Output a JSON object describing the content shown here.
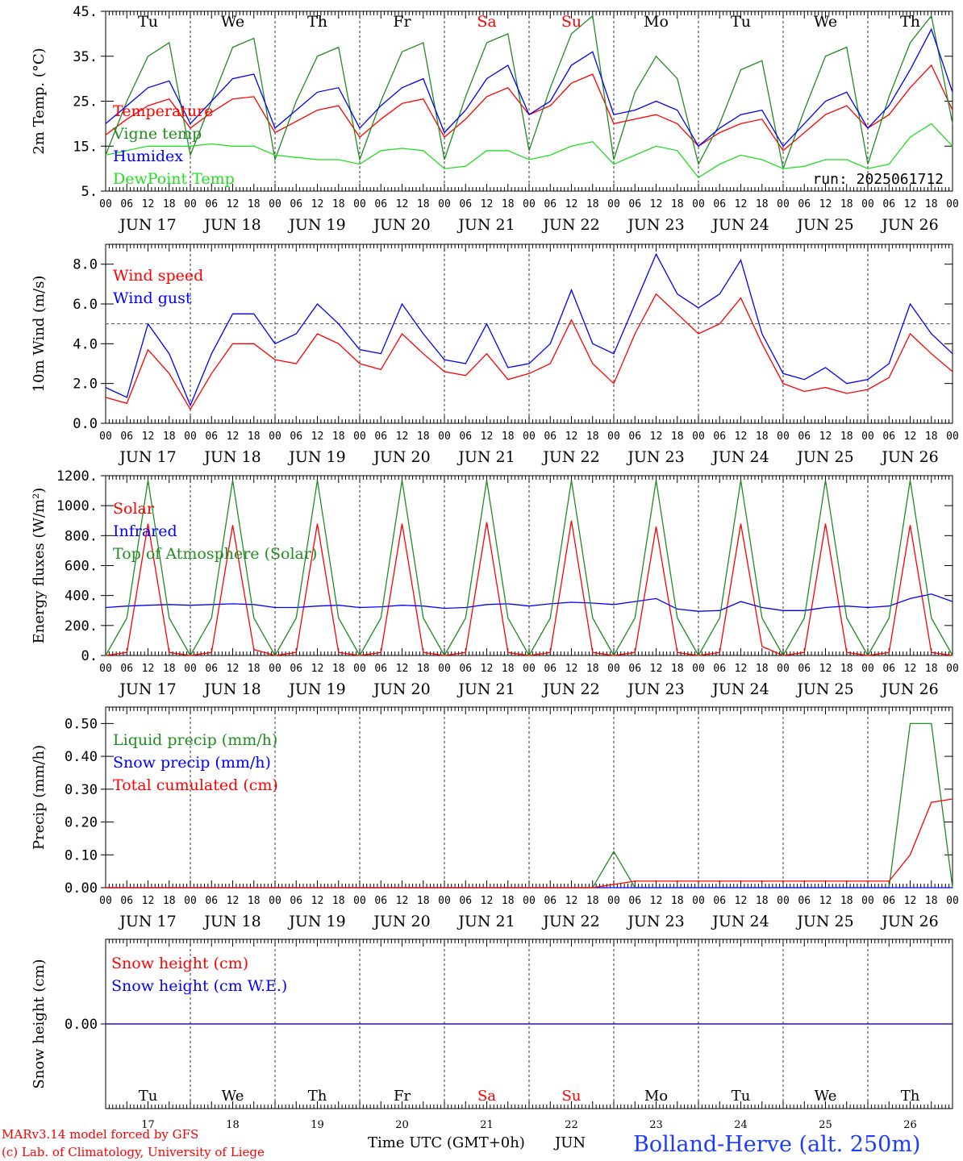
{
  "days": [
    "Tu",
    "We",
    "Th",
    "Fr",
    "Sa",
    "Su",
    "Mo",
    "Tu",
    "We",
    "Th"
  ],
  "weekend_day_indices": [
    4,
    5
  ],
  "dates": [
    "JUN 17",
    "JUN 18",
    "JUN 19",
    "JUN 20",
    "JUN 21",
    "JUN 22",
    "JUN 23",
    "JUN 24",
    "JUN 25",
    "JUN 26"
  ],
  "day_numbers": [
    "17",
    "18",
    "19",
    "20",
    "21",
    "22",
    "23",
    "24",
    "25",
    "26"
  ],
  "hour_ticks": [
    "00",
    "06",
    "12",
    "18"
  ],
  "hour_end_tick": "00",
  "colors": {
    "red": "#ff0000",
    "green": "#228b22",
    "blue": "#0000ff",
    "lightgreen": "#22dd22",
    "gray": "#444444",
    "station": "#1e3cff"
  },
  "footer": {
    "model": "MARv3.14 model forced by GFS",
    "lab": "(c) Lab. of Climatology, University of Liege",
    "time_axis": "Time UTC (GMT+0h)",
    "month": "JUN",
    "station": "Bolland-Herve (alt. 250m)"
  },
  "chart_data": [
    {
      "type": "line",
      "id": "temp",
      "ylabel": "2m Temp. (°C)",
      "ylim": [
        5,
        45
      ],
      "yticks": [
        "5.",
        "15.",
        "25.",
        "35.",
        "45."
      ],
      "ytick_values": [
        5,
        15,
        25,
        35,
        45
      ],
      "annotation": "run: 2025061712",
      "legend": [
        "Temperature",
        "Vigne temp",
        "Humidex",
        "DewPoint Temp"
      ],
      "series": [
        {
          "name": "Temperature",
          "color": "red",
          "values": [
            17.5,
            21,
            24,
            25.5,
            19,
            22.5,
            25.5,
            26,
            18,
            20.5,
            23,
            24,
            17,
            21,
            24.5,
            25.5,
            17,
            21,
            26,
            28,
            22,
            24,
            29,
            31,
            20,
            21,
            22,
            20,
            15,
            18,
            20,
            21,
            14,
            18,
            22,
            24,
            19,
            22,
            28,
            33,
            23
          ]
        },
        {
          "name": "Vigne temp",
          "color": "green",
          "values": [
            13,
            25,
            35,
            38,
            13,
            25,
            37,
            39,
            12,
            25,
            35,
            37,
            12,
            25,
            36,
            38,
            12,
            26,
            38,
            40,
            14,
            28,
            40,
            44,
            12,
            27,
            35,
            30,
            11,
            20,
            32,
            34,
            10,
            23,
            35,
            37,
            11,
            26,
            38,
            44,
            20
          ]
        },
        {
          "name": "Humidex",
          "color": "blue",
          "values": [
            20,
            24,
            28,
            29.5,
            20,
            25,
            30,
            31,
            19,
            23,
            27,
            28,
            19,
            24,
            28,
            30,
            18,
            23,
            30,
            33,
            22,
            25,
            33,
            36,
            22,
            23,
            25,
            23,
            15,
            19,
            22,
            23,
            15,
            20,
            25,
            27,
            19,
            24,
            32,
            41,
            27
          ]
        },
        {
          "name": "DewPoint Temp",
          "color": "lightgreen",
          "values": [
            13,
            14,
            15,
            15,
            15,
            15.5,
            15,
            15,
            13,
            12.5,
            12,
            12,
            11,
            14,
            14.5,
            14,
            10,
            10.5,
            14,
            14,
            12,
            13,
            15,
            16,
            11,
            13,
            15,
            14,
            8,
            11,
            13,
            12,
            10,
            10.5,
            12,
            12,
            10,
            11,
            17,
            20,
            15
          ]
        }
      ]
    },
    {
      "type": "line",
      "id": "wind",
      "ylabel": "10m Wind (m/s)",
      "ylim": [
        0,
        9
      ],
      "yticks": [
        "0.0",
        "2.0",
        "4.0",
        "6.0",
        "8.0"
      ],
      "ytick_values": [
        0,
        2,
        4,
        6,
        8
      ],
      "reference_line": 5,
      "legend": [
        "Wind speed",
        "Wind gust"
      ],
      "series": [
        {
          "name": "Wind speed",
          "color": "red",
          "values": [
            1.3,
            1.0,
            3.7,
            2.5,
            0.7,
            2.5,
            4.0,
            4.0,
            3.2,
            3.0,
            4.5,
            4.0,
            3.0,
            2.7,
            4.5,
            3.5,
            2.6,
            2.4,
            3.5,
            2.2,
            2.5,
            3.0,
            5.2,
            3.0,
            2.0,
            4.5,
            6.5,
            5.5,
            4.5,
            5.0,
            6.3,
            4.0,
            2.0,
            1.6,
            1.8,
            1.5,
            1.7,
            2.3,
            4.5,
            3.5,
            2.6
          ]
        },
        {
          "name": "Wind gust",
          "color": "blue",
          "values": [
            1.8,
            1.3,
            5.0,
            3.5,
            0.9,
            3.5,
            5.5,
            5.5,
            4.0,
            4.5,
            6.0,
            5.0,
            3.7,
            3.5,
            6.0,
            4.5,
            3.2,
            3.0,
            5.0,
            2.8,
            3.0,
            4.0,
            6.7,
            4.0,
            3.5,
            6.0,
            8.5,
            6.5,
            5.8,
            6.5,
            8.2,
            4.5,
            2.5,
            2.2,
            2.8,
            2.0,
            2.2,
            3.0,
            6.0,
            4.5,
            3.5
          ]
        }
      ]
    },
    {
      "type": "line",
      "id": "energy",
      "ylabel": "Energy fluxes (W/m²)",
      "ylim": [
        0,
        1200
      ],
      "yticks": [
        "0.",
        "200.",
        "400.",
        "600.",
        "800.",
        "1000.",
        "1200."
      ],
      "ytick_values": [
        0,
        200,
        400,
        600,
        800,
        1000,
        1200
      ],
      "legend": [
        "Solar",
        "Infrared",
        "Top of Atmosphere (Solar)"
      ],
      "series": [
        {
          "name": "Solar",
          "color": "red",
          "values": [
            0,
            20,
            880,
            20,
            0,
            20,
            870,
            40,
            0,
            20,
            880,
            20,
            0,
            20,
            880,
            20,
            0,
            20,
            890,
            20,
            0,
            20,
            900,
            20,
            0,
            20,
            860,
            20,
            0,
            20,
            880,
            60,
            0,
            20,
            880,
            20,
            0,
            20,
            870,
            20,
            0
          ]
        },
        {
          "name": "Infrared",
          "color": "blue",
          "values": [
            320,
            330,
            335,
            340,
            335,
            340,
            345,
            340,
            320,
            320,
            330,
            335,
            320,
            325,
            335,
            330,
            315,
            320,
            340,
            345,
            330,
            345,
            355,
            350,
            340,
            360,
            380,
            310,
            295,
            300,
            360,
            320,
            300,
            300,
            320,
            330,
            320,
            330,
            380,
            410,
            360
          ]
        },
        {
          "name": "Top of Atmosphere (Solar)",
          "color": "green",
          "values": [
            0,
            250,
            1170,
            250,
            0,
            250,
            1170,
            250,
            0,
            250,
            1170,
            250,
            0,
            250,
            1170,
            250,
            0,
            250,
            1170,
            250,
            0,
            250,
            1170,
            250,
            0,
            250,
            1170,
            250,
            0,
            250,
            1170,
            250,
            0,
            250,
            1170,
            250,
            0,
            250,
            1170,
            250,
            0
          ]
        }
      ]
    },
    {
      "type": "line",
      "id": "precip",
      "ylabel": "Precip (mm/h)",
      "ylim": [
        0,
        0.55
      ],
      "yticks": [
        "0.00",
        "0.10",
        "0.20",
        "0.30",
        "0.40",
        "0.50"
      ],
      "ytick_values": [
        0,
        0.1,
        0.2,
        0.3,
        0.4,
        0.5
      ],
      "legend": [
        "Liquid precip (mm/h)",
        "Snow precip (mm/h)",
        "Total cumulated (cm)"
      ],
      "series": [
        {
          "name": "Liquid precip (mm/h)",
          "color": "green",
          "values": [
            0,
            0,
            0,
            0,
            0,
            0,
            0,
            0,
            0,
            0,
            0,
            0,
            0,
            0,
            0,
            0,
            0,
            0,
            0,
            0,
            0,
            0,
            0,
            0,
            0.11,
            0,
            0,
            0,
            0,
            0,
            0,
            0,
            0,
            0,
            0,
            0,
            0,
            0,
            0.5,
            0.5,
            0
          ]
        },
        {
          "name": "Snow precip (mm/h)",
          "color": "blue",
          "values": [
            0,
            0,
            0,
            0,
            0,
            0,
            0,
            0,
            0,
            0,
            0,
            0,
            0,
            0,
            0,
            0,
            0,
            0,
            0,
            0,
            0,
            0,
            0,
            0,
            0,
            0,
            0,
            0,
            0,
            0,
            0,
            0,
            0,
            0,
            0,
            0,
            0,
            0,
            0,
            0,
            0
          ]
        },
        {
          "name": "Total cumulated (cm)",
          "color": "red",
          "values": [
            0,
            0,
            0,
            0,
            0,
            0,
            0,
            0,
            0,
            0,
            0,
            0,
            0,
            0,
            0,
            0,
            0,
            0,
            0,
            0,
            0,
            0,
            0,
            0,
            0.01,
            0.02,
            0.02,
            0.02,
            0.02,
            0.02,
            0.02,
            0.02,
            0.02,
            0.02,
            0.02,
            0.02,
            0.02,
            0.02,
            0.1,
            0.26,
            0.27
          ]
        }
      ]
    },
    {
      "type": "line",
      "id": "snow",
      "ylabel": "Snow height (cm)",
      "ylim": [
        -1,
        1
      ],
      "yticks": [
        "0.00"
      ],
      "ytick_values": [
        0
      ],
      "legend": [
        "Snow height (cm)",
        "Snow height (cm W.E.)"
      ],
      "series": [
        {
          "name": "Snow height (cm)",
          "color": "red",
          "values": [
            0,
            0,
            0,
            0,
            0,
            0,
            0,
            0,
            0,
            0,
            0,
            0,
            0,
            0,
            0,
            0,
            0,
            0,
            0,
            0,
            0,
            0,
            0,
            0,
            0,
            0,
            0,
            0,
            0,
            0,
            0,
            0,
            0,
            0,
            0,
            0,
            0,
            0,
            0,
            0,
            0
          ]
        },
        {
          "name": "Snow height (cm W.E.)",
          "color": "blue",
          "values": [
            0,
            0,
            0,
            0,
            0,
            0,
            0,
            0,
            0,
            0,
            0,
            0,
            0,
            0,
            0,
            0,
            0,
            0,
            0,
            0,
            0,
            0,
            0,
            0,
            0,
            0,
            0,
            0,
            0,
            0,
            0,
            0,
            0,
            0,
            0,
            0,
            0,
            0,
            0,
            0,
            0
          ]
        }
      ]
    }
  ]
}
